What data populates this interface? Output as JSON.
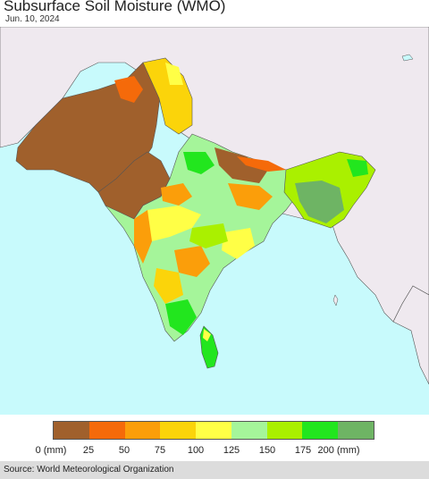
{
  "header": {
    "title": "Subsurface Soil Moisture (WMO)",
    "date": "Jun. 10, 2024"
  },
  "legend": {
    "ticks": [
      "0 (mm)",
      "25",
      "50",
      "75",
      "100",
      "125",
      "150",
      "175",
      "200 (mm)"
    ],
    "colors": [
      "#a0602c",
      "#f56a0a",
      "#fb9e0a",
      "#fbd40a",
      "#ffff46",
      "#a5f59a",
      "#aaf000",
      "#22e61e",
      "#6eb464"
    ]
  },
  "map_colors": {
    "ocean": "#c8fafc",
    "land_outside": "#efe9ef",
    "border": "#555555"
  },
  "footer": {
    "source": "Source: World Meteorological Organization"
  }
}
